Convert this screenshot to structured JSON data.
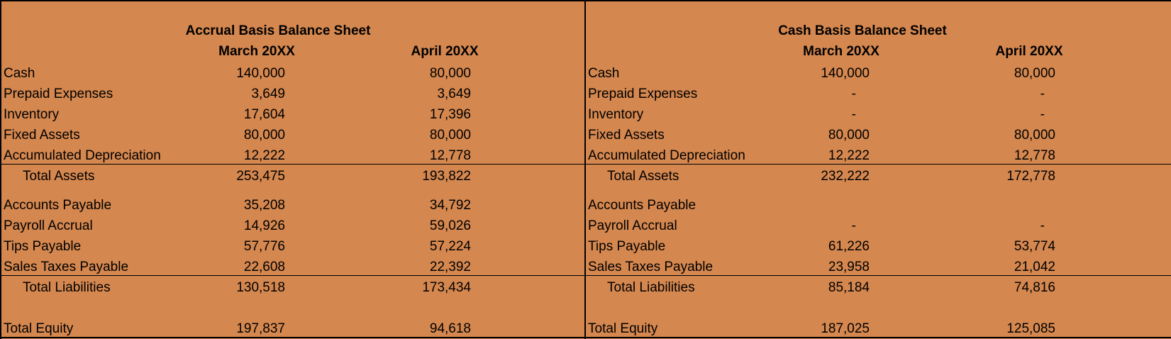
{
  "accrual": {
    "title": "Accrual Basis Balance Sheet",
    "col1": "March 20XX",
    "col2": "April 20XX",
    "rows": [
      {
        "label": "Cash",
        "v1": "140,000",
        "v2": "80,000"
      },
      {
        "label": "Prepaid Expenses",
        "v1": "3,649",
        "v2": "3,649"
      },
      {
        "label": "Inventory",
        "v1": "17,604",
        "v2": "17,396"
      },
      {
        "label": "Fixed Assets",
        "v1": "80,000",
        "v2": "80,000"
      },
      {
        "label": "Accumulated Depreciation",
        "v1": "12,222",
        "v2": "12,778"
      },
      {
        "label": "Total Assets",
        "v1": "253,475",
        "v2": "193,822"
      },
      {
        "label": "Accounts Payable",
        "v1": "35,208",
        "v2": "34,792"
      },
      {
        "label": "Payroll Accrual",
        "v1": "14,926",
        "v2": "59,026"
      },
      {
        "label": "Tips Payable",
        "v1": "57,776",
        "v2": "57,224"
      },
      {
        "label": "Sales Taxes Payable",
        "v1": "22,608",
        "v2": "22,392"
      },
      {
        "label": "Total Liabilities",
        "v1": "130,518",
        "v2": "173,434"
      },
      {
        "label": "Total Equity",
        "v1": "197,837",
        "v2": "94,618"
      }
    ]
  },
  "cash": {
    "title": "Cash Basis Balance Sheet",
    "col1": "March 20XX",
    "col2": "April 20XX",
    "rows": [
      {
        "label": "Cash",
        "v1": "140,000",
        "v2": "80,000"
      },
      {
        "label": "Prepaid Expenses",
        "v1": "-",
        "v2": "-"
      },
      {
        "label": "Inventory",
        "v1": "-",
        "v2": "-"
      },
      {
        "label": "Fixed Assets",
        "v1": "80,000",
        "v2": "80,000"
      },
      {
        "label": "Accumulated Depreciation",
        "v1": "12,222",
        "v2": "12,778"
      },
      {
        "label": "Total Assets",
        "v1": "232,222",
        "v2": "172,778"
      },
      {
        "label": "Accounts Payable",
        "v1": "",
        "v2": ""
      },
      {
        "label": "Payroll Accrual",
        "v1": "-",
        "v2": "-"
      },
      {
        "label": "Tips Payable",
        "v1": "61,226",
        "v2": "53,774"
      },
      {
        "label": "Sales Taxes Payable",
        "v1": "23,958",
        "v2": "21,042"
      },
      {
        "label": "Total Liabilities",
        "v1": "85,184",
        "v2": "74,816"
      },
      {
        "label": "Total Equity",
        "v1": "187,025",
        "v2": "125,085"
      }
    ]
  }
}
